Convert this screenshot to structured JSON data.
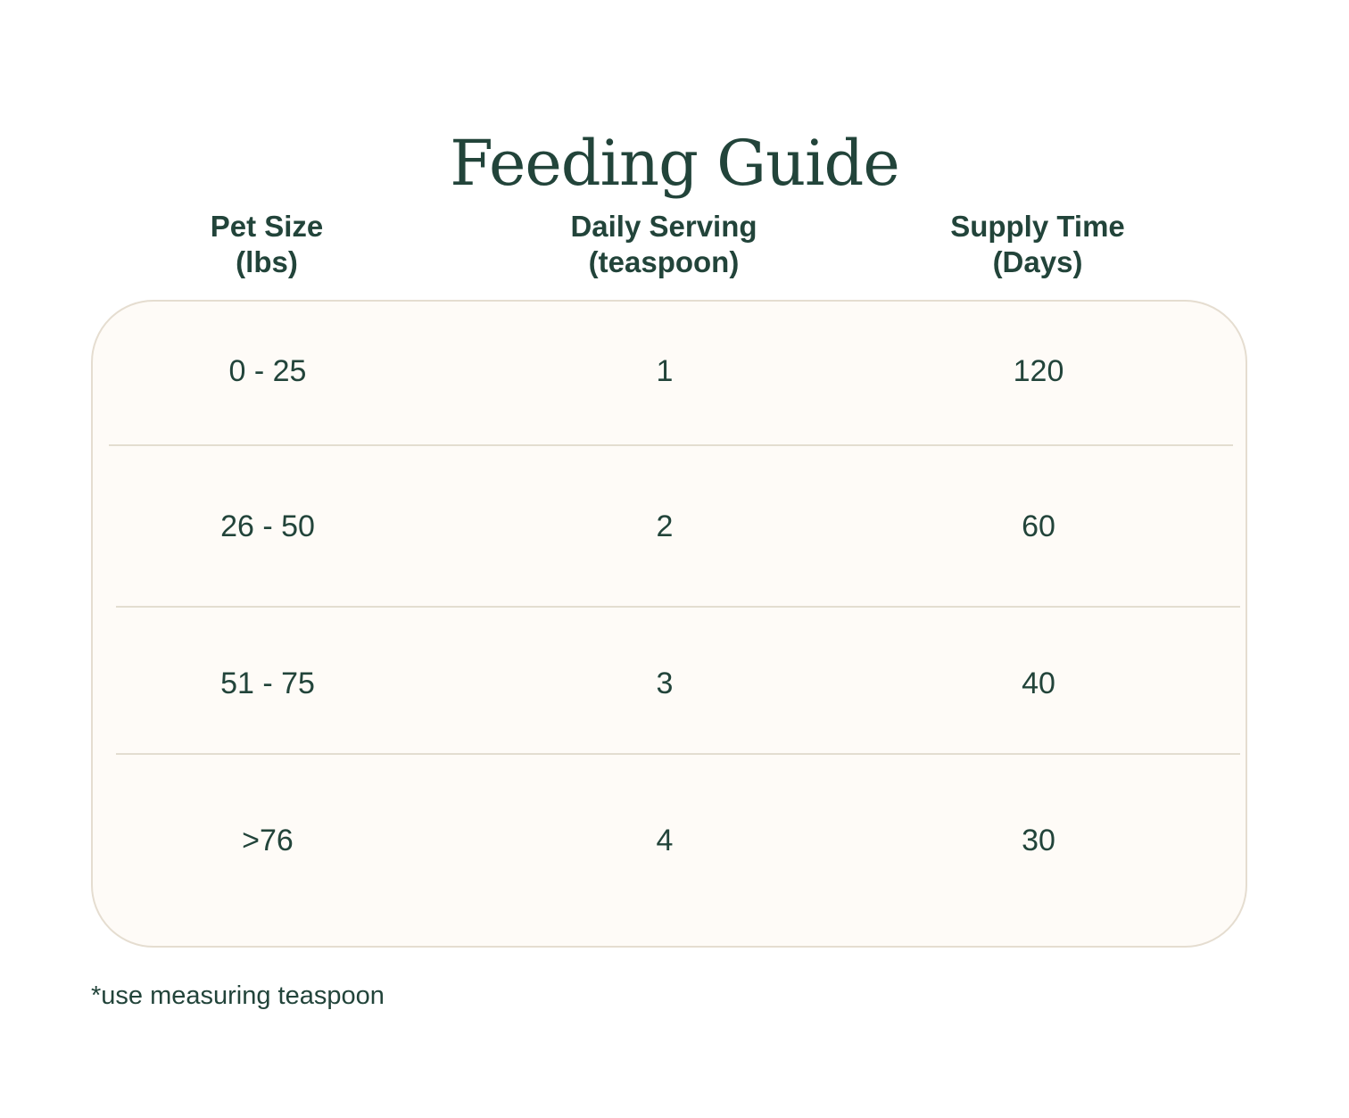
{
  "title": "Feeding Guide",
  "headers": [
    {
      "line1": "Pet Size",
      "line2": "(lbs)"
    },
    {
      "line1": "Daily Serving",
      "line2": "(teaspoon)"
    },
    {
      "line1": "Supply Time",
      "line2": "(Days)"
    }
  ],
  "rows": [
    {
      "pet_size": "0 - 25",
      "daily_serving": "1",
      "supply_time": "120"
    },
    {
      "pet_size": "26 - 50",
      "daily_serving": "2",
      "supply_time": "60"
    },
    {
      "pet_size": "51 - 75",
      "daily_serving": "3",
      "supply_time": "40"
    },
    {
      "pet_size": ">76",
      "daily_serving": "4",
      "supply_time": "30"
    }
  ],
  "footnote": "*use measuring teaspoon",
  "colors": {
    "text": "#22443a",
    "card_background": "#fefbf7",
    "card_border": "#e5ddd0"
  }
}
